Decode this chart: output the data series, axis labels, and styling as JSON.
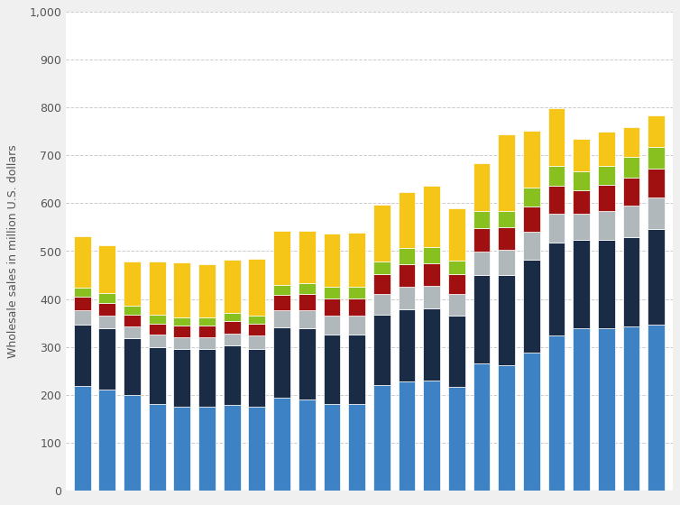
{
  "n_bars": 24,
  "series_order": [
    "blue",
    "navy",
    "gray",
    "darkred",
    "lime",
    "yellow"
  ],
  "series": {
    "blue": [
      218,
      210,
      200,
      180,
      175,
      175,
      178,
      175,
      193,
      190,
      180,
      180,
      220,
      228,
      230,
      217,
      265,
      262,
      288,
      323,
      338,
      338,
      342,
      347
    ],
    "navy": [
      128,
      128,
      118,
      120,
      120,
      120,
      125,
      120,
      148,
      148,
      145,
      145,
      148,
      150,
      150,
      148,
      185,
      188,
      195,
      195,
      185,
      185,
      188,
      200
    ],
    "gray": [
      30,
      28,
      25,
      25,
      25,
      25,
      25,
      28,
      35,
      38,
      40,
      40,
      43,
      48,
      48,
      45,
      50,
      52,
      58,
      60,
      55,
      60,
      65,
      65
    ],
    "darkred": [
      28,
      26,
      25,
      24,
      24,
      24,
      25,
      25,
      32,
      34,
      36,
      36,
      40,
      46,
      46,
      42,
      48,
      48,
      52,
      58,
      50,
      55,
      58,
      60
    ],
    "lime": [
      20,
      20,
      18,
      18,
      18,
      18,
      18,
      18,
      22,
      24,
      25,
      25,
      28,
      34,
      34,
      28,
      36,
      34,
      40,
      42,
      38,
      40,
      44,
      46
    ],
    "yellow": [
      108,
      100,
      92,
      112,
      115,
      110,
      112,
      118,
      112,
      108,
      110,
      112,
      118,
      118,
      128,
      110,
      100,
      160,
      118,
      120,
      68,
      72,
      62,
      65
    ]
  },
  "colors": {
    "blue": "#3d82c4",
    "navy": "#1a2c45",
    "gray": "#b0b8bc",
    "darkred": "#a01010",
    "lime": "#88c020",
    "yellow": "#f5c518"
  },
  "ylabel": "Wholesale sales in million U.S. dollars",
  "ylim": [
    0,
    1000
  ],
  "yticks": [
    0,
    100,
    200,
    300,
    400,
    500,
    600,
    700,
    800,
    900,
    1000
  ],
  "bg_color": "#f0f0f0",
  "plot_bg": "#ffffff",
  "bar_width": 0.68,
  "grid_color": "#cccccc",
  "grid_style": "--",
  "grid_lw": 0.7
}
